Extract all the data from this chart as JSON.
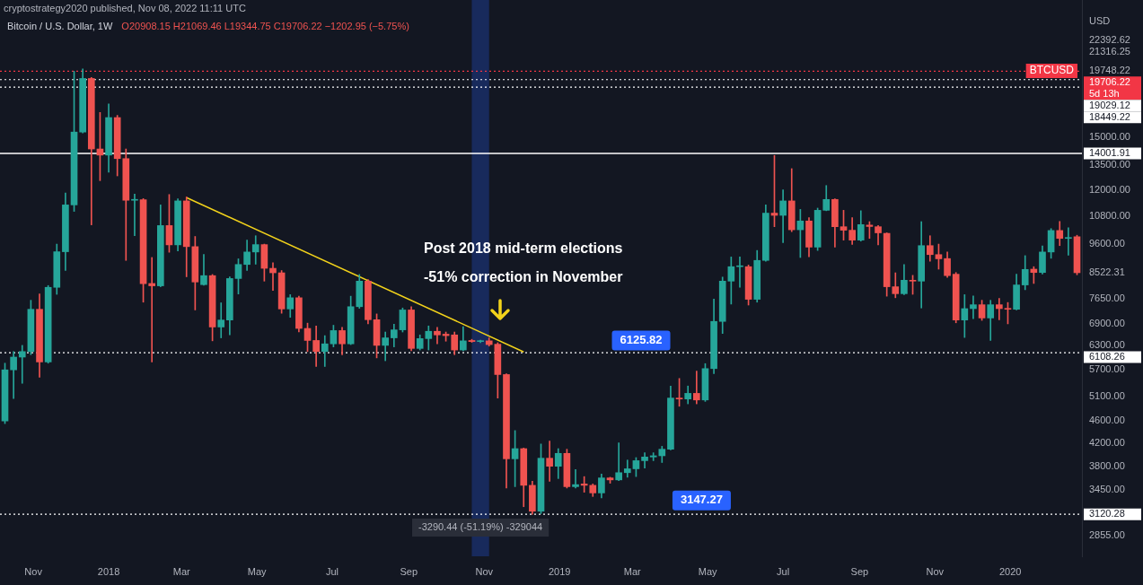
{
  "chart_data": {
    "type": "candlestick",
    "title": "Bitcoin / U.S. Dollar, 1W",
    "subtitle": "O20908.15 H21069.46 L19344.75 C19706.22 −1202.95 (−5.75%)",
    "ylabel": "USD",
    "log": "y",
    "x": [
      "2017-10-09",
      "2017-10-16",
      "2017-10-23",
      "2017-10-30",
      "2017-11-06",
      "2017-11-13",
      "2017-11-20",
      "2017-11-27",
      "2017-12-04",
      "2017-12-11",
      "2017-12-18",
      "2017-12-25",
      "2018-01-01",
      "2018-01-08",
      "2018-01-15",
      "2018-01-22",
      "2018-01-29",
      "2018-02-05",
      "2018-02-12",
      "2018-02-19",
      "2018-02-26",
      "2018-03-05",
      "2018-03-12",
      "2018-03-19",
      "2018-03-26",
      "2018-04-02",
      "2018-04-09",
      "2018-04-16",
      "2018-04-23",
      "2018-04-30",
      "2018-05-07",
      "2018-05-14",
      "2018-05-21",
      "2018-05-28",
      "2018-06-04",
      "2018-06-11",
      "2018-06-18",
      "2018-06-25",
      "2018-07-02",
      "2018-07-09",
      "2018-07-16",
      "2018-07-23",
      "2018-07-30",
      "2018-08-06",
      "2018-08-13",
      "2018-08-20",
      "2018-08-27",
      "2018-09-03",
      "2018-09-10",
      "2018-09-17",
      "2018-09-24",
      "2018-10-01",
      "2018-10-08",
      "2018-10-15",
      "2018-10-22",
      "2018-10-29",
      "2018-11-05",
      "2018-11-12",
      "2018-11-19",
      "2018-11-26",
      "2018-12-03",
      "2018-12-10",
      "2018-12-17",
      "2018-12-24",
      "2018-12-31",
      "2019-01-07",
      "2019-01-14",
      "2019-01-21",
      "2019-01-28",
      "2019-02-04",
      "2019-02-11",
      "2019-02-18",
      "2019-02-25",
      "2019-03-04",
      "2019-03-11",
      "2019-03-18",
      "2019-03-25",
      "2019-04-01",
      "2019-04-08",
      "2019-04-15",
      "2019-04-22",
      "2019-04-29",
      "2019-05-06",
      "2019-05-13",
      "2019-05-20",
      "2019-05-27",
      "2019-06-03",
      "2019-06-10",
      "2019-06-17",
      "2019-06-24",
      "2019-07-01",
      "2019-07-08",
      "2019-07-15",
      "2019-07-22",
      "2019-07-29",
      "2019-08-05",
      "2019-08-12",
      "2019-08-19",
      "2019-08-26",
      "2019-09-02",
      "2019-09-09",
      "2019-09-16",
      "2019-09-23",
      "2019-09-30",
      "2019-10-07",
      "2019-10-14",
      "2019-10-21",
      "2019-10-28",
      "2019-11-04",
      "2019-11-11",
      "2019-11-18",
      "2019-11-25",
      "2019-12-02",
      "2019-12-09",
      "2019-12-16",
      "2019-12-23",
      "2019-12-30",
      "2020-01-06",
      "2020-01-13",
      "2020-01-20",
      "2020-01-27",
      "2020-02-03",
      "2020-02-10",
      "2020-02-17",
      "2020-02-24"
    ],
    "ohlc": [
      [
        4600,
        5850,
        4550,
        5690
      ],
      [
        5690,
        6140,
        5050,
        6000
      ],
      [
        6000,
        6300,
        5380,
        6140
      ],
      [
        6140,
        7600,
        6060,
        7320
      ],
      [
        7320,
        7800,
        5520,
        5880
      ],
      [
        5880,
        8080,
        5850,
        8020
      ],
      [
        8020,
        9600,
        7790,
        9300
      ],
      [
        9300,
        11870,
        8600,
        11300
      ],
      [
        11300,
        19700,
        11000,
        15300
      ],
      [
        15300,
        19890,
        15250,
        19120
      ],
      [
        19120,
        19200,
        10400,
        14260
      ],
      [
        14260,
        16600,
        12500,
        13900
      ],
      [
        13900,
        17200,
        12950,
        16250
      ],
      [
        16250,
        16400,
        12750,
        13700
      ],
      [
        13700,
        14260,
        8970,
        11520
      ],
      [
        11520,
        11820,
        9940,
        11550
      ],
      [
        11550,
        11600,
        7540,
        8140
      ],
      [
        8150,
        9080,
        5880,
        8070
      ],
      [
        8070,
        11300,
        8040,
        10370
      ],
      [
        10370,
        11800,
        9280,
        9570
      ],
      [
        9570,
        11590,
        9330,
        11490
      ],
      [
        11490,
        11680,
        8380,
        9500
      ],
      [
        9500,
        9910,
        7300,
        8200
      ],
      [
        8110,
        9200,
        8090,
        8420
      ],
      [
        8420,
        8460,
        6420,
        6800
      ],
      [
        6800,
        7520,
        6500,
        7000
      ],
      [
        7000,
        8380,
        6580,
        8320
      ],
      [
        8320,
        9030,
        7800,
        8820
      ],
      [
        8820,
        9760,
        8600,
        9290
      ],
      [
        9290,
        9940,
        8830,
        9580
      ],
      [
        9580,
        9600,
        8230,
        8680
      ],
      [
        8680,
        8880,
        7920,
        8520
      ],
      [
        8520,
        8600,
        7200,
        7330
      ],
      [
        7330,
        7780,
        7080,
        7680
      ],
      [
        7680,
        7730,
        6660,
        6760
      ],
      [
        6760,
        6910,
        6140,
        6430
      ],
      [
        6430,
        6830,
        5770,
        6140
      ],
      [
        6140,
        6560,
        5770,
        6340
      ],
      [
        6340,
        6850,
        6260,
        6700
      ],
      [
        6700,
        6790,
        6060,
        6340
      ],
      [
        6340,
        7730,
        6320,
        7400
      ],
      [
        7400,
        8460,
        7350,
        8230
      ],
      [
        8230,
        8280,
        6890,
        7010
      ],
      [
        7010,
        7180,
        5980,
        6300
      ],
      [
        6300,
        6660,
        5910,
        6500
      ],
      [
        6500,
        6880,
        6260,
        6720
      ],
      [
        6720,
        7360,
        6660,
        7300
      ],
      [
        7300,
        7400,
        6160,
        6220
      ],
      [
        6220,
        6580,
        6180,
        6480
      ],
      [
        6480,
        6830,
        6180,
        6680
      ],
      [
        6680,
        6790,
        6340,
        6580
      ],
      [
        6600,
        6660,
        6410,
        6560
      ],
      [
        6580,
        6660,
        6060,
        6180
      ],
      [
        6180,
        6810,
        6160,
        6420
      ],
      [
        6430,
        6460,
        6380,
        6400
      ],
      [
        6400,
        6440,
        6370,
        6410
      ],
      [
        6420,
        6500,
        6280,
        6320
      ],
      [
        6330,
        6370,
        5060,
        5580
      ],
      [
        5580,
        5600,
        3480,
        3930
      ],
      [
        3930,
        4420,
        3500,
        4100
      ],
      [
        4100,
        4110,
        3220,
        3520
      ],
      [
        3520,
        3580,
        3120,
        3160
      ],
      [
        3160,
        4180,
        3130,
        3940
      ],
      [
        3940,
        4230,
        3580,
        3810
      ],
      [
        3810,
        4100,
        3620,
        4020
      ],
      [
        4020,
        4090,
        3480,
        3500
      ],
      [
        3500,
        3760,
        3480,
        3530
      ],
      [
        3540,
        3650,
        3420,
        3520
      ],
      [
        3520,
        3540,
        3360,
        3410
      ],
      [
        3410,
        3690,
        3340,
        3630
      ],
      [
        3630,
        3640,
        3550,
        3600
      ],
      [
        3600,
        4200,
        3590,
        3710
      ],
      [
        3710,
        3910,
        3640,
        3770
      ],
      [
        3770,
        3950,
        3650,
        3900
      ],
      [
        3900,
        4030,
        3780,
        3960
      ],
      [
        3960,
        4030,
        3900,
        3980
      ],
      [
        3980,
        4140,
        3870,
        4090
      ],
      [
        4090,
        5320,
        4080,
        5060
      ],
      [
        5060,
        5490,
        4890,
        5040
      ],
      [
        5040,
        5320,
        4940,
        5160
      ],
      [
        5160,
        5660,
        4940,
        5020
      ],
      [
        5020,
        5840,
        4990,
        5720
      ],
      [
        5720,
        7640,
        5600,
        6960
      ],
      [
        6960,
        8370,
        6620,
        8230
      ],
      [
        8230,
        9100,
        7480,
        8740
      ],
      [
        8740,
        9100,
        8020,
        8760
      ],
      [
        8740,
        8800,
        7450,
        7630
      ],
      [
        7630,
        9350,
        7540,
        8970
      ],
      [
        8970,
        11300,
        8940,
        10920
      ],
      [
        10920,
        13880,
        10320,
        10820
      ],
      [
        10820,
        12030,
        9660,
        11490
      ],
      [
        11490,
        13140,
        10110,
        10190
      ],
      [
        10190,
        11090,
        9080,
        10570
      ],
      [
        10570,
        10720,
        9110,
        9480
      ],
      [
        9480,
        11150,
        9350,
        11050
      ],
      [
        11050,
        12250,
        11030,
        11560
      ],
      [
        11560,
        11590,
        9480,
        10320
      ],
      [
        10320,
        11050,
        9760,
        10170
      ],
      [
        10170,
        10720,
        9590,
        9760
      ],
      [
        9760,
        11030,
        9720,
        10410
      ],
      [
        10390,
        10540,
        9830,
        10330
      ],
      [
        10320,
        10370,
        9570,
        10060
      ],
      [
        10040,
        10060,
        7730,
        8040
      ],
      [
        8040,
        8520,
        7680,
        7810
      ],
      [
        7810,
        8820,
        7780,
        8260
      ],
      [
        8260,
        8430,
        7790,
        8230
      ],
      [
        8230,
        10540,
        7360,
        9540
      ],
      [
        9540,
        9940,
        8940,
        9190
      ],
      [
        9190,
        9600,
        8650,
        9030
      ],
      [
        9040,
        9290,
        8360,
        8420
      ],
      [
        8470,
        8530,
        6920,
        7000
      ],
      [
        7000,
        7780,
        6510,
        7340
      ],
      [
        7340,
        7740,
        7040,
        7460
      ],
      [
        7460,
        7600,
        6990,
        7060
      ],
      [
        7060,
        7600,
        6430,
        7460
      ],
      [
        7460,
        7660,
        7010,
        7340
      ],
      [
        7340,
        7530,
        6890,
        7320
      ],
      [
        7320,
        8470,
        7300,
        8100
      ],
      [
        8100,
        9150,
        7940,
        8640
      ],
      [
        8650,
        8740,
        8150,
        8530
      ],
      [
        8530,
        9530,
        8480,
        9290
      ],
      [
        9290,
        10240,
        9050,
        10160
      ],
      [
        10160,
        10550,
        9540,
        9830
      ],
      [
        9830,
        10280,
        9170,
        9850
      ],
      [
        9900,
        9960,
        8450,
        8522.31
      ]
    ],
    "series": [
      {
        "type": "line",
        "x": [
          "2018-03-05",
          "2018-12-03"
        ],
        "values": [
          11650,
          6130
        ],
        "color": "#f2d21b"
      }
    ],
    "xlim": [
      "2017-10-05",
      "2020-02-28"
    ],
    "xticks": [
      {
        "value": "2017-11-01",
        "label": "Nov"
      },
      {
        "value": "2018-01-01",
        "label": "2018"
      },
      {
        "value": "2018-03-01",
        "label": "Mar"
      },
      {
        "value": "2018-05-01",
        "label": "May"
      },
      {
        "value": "2018-07-01",
        "label": "Jul"
      },
      {
        "value": "2018-09-01",
        "label": "Sep"
      },
      {
        "value": "2018-11-01",
        "label": "Nov"
      },
      {
        "value": "2019-01-01",
        "label": "2019"
      },
      {
        "value": "2019-03-01",
        "label": "Mar"
      },
      {
        "value": "2019-05-01",
        "label": "May"
      },
      {
        "value": "2019-07-01",
        "label": "Jul"
      },
      {
        "value": "2019-09-01",
        "label": "Sep"
      },
      {
        "value": "2019-11-01",
        "label": "Nov"
      },
      {
        "value": "2020-01-01",
        "label": "2020"
      }
    ],
    "ylim": [
      2620,
      26500
    ],
    "yticks": [
      {
        "value": 2855,
        "label": "2855.00"
      },
      {
        "value": 3450,
        "label": "3450.00"
      },
      {
        "value": 3800,
        "label": "3800.00"
      },
      {
        "value": 4200,
        "label": "4200.00"
      },
      {
        "value": 4600,
        "label": "4600.00"
      },
      {
        "value": 5100,
        "label": "5100.00"
      },
      {
        "value": 5700,
        "label": "5700.00"
      },
      {
        "value": 6300,
        "label": "6300.00"
      },
      {
        "value": 6900,
        "label": "6900.00"
      },
      {
        "value": 7650,
        "label": "7650.00"
      },
      {
        "value": 8522.31,
        "label": "8522.31"
      },
      {
        "value": 9600,
        "label": "9600.00"
      },
      {
        "value": 10800,
        "label": "10800.00"
      },
      {
        "value": 12000,
        "label": "12000.00"
      },
      {
        "value": 13500,
        "label": "13500.00"
      },
      {
        "value": 15000,
        "label": "15000.00"
      },
      {
        "value": 19748.22,
        "label": "19748.22"
      },
      {
        "value": 21316.25,
        "label": "21316.25"
      },
      {
        "value": 22392.62,
        "label": "22392.62"
      }
    ],
    "ref_lines": [
      {
        "axis": "y",
        "value": 3120.28,
        "label": "3120.28",
        "line_style": "dotted",
        "color": "#ffffff"
      },
      {
        "axis": "y",
        "value": 6108.26,
        "label": "6108.26",
        "line_style": "dotted",
        "color": "#ffffff"
      },
      {
        "axis": "y",
        "value": 14001.91,
        "label": "14001.91",
        "line_style": "solid",
        "color": "#ffffff"
      },
      {
        "axis": "y",
        "value": 18449.22,
        "label": "18449.22",
        "line_style": "dotted",
        "color": "#ffffff"
      },
      {
        "axis": "y",
        "value": 19029.12,
        "label": "19029.12",
        "line_style": "dotted",
        "color": "#ffffff"
      },
      {
        "axis": "y",
        "value": 19706.22,
        "label": "19706.22\n5d 13h",
        "line_style": "dotted",
        "color": "#f23645"
      }
    ],
    "bands": [
      {
        "axis": "x",
        "from": "2018-10-22",
        "to": "2018-11-05",
        "label": "-3290.44 (-51.19%) -329044",
        "color": "#2962ff"
      }
    ],
    "annotations": [
      "cryptostrategy2020 published, Nov 08, 2022 11:11 UTC",
      "BTCUSD",
      "Post 2018 mid-term elections",
      "-51% correction in November",
      {
        "text": "6125.82",
        "x": "2019-02-11",
        "y": 6125.82
      },
      {
        "text": "3147.27",
        "x": "2019-04-01",
        "y": 3147.27
      }
    ],
    "grid": false
  }
}
